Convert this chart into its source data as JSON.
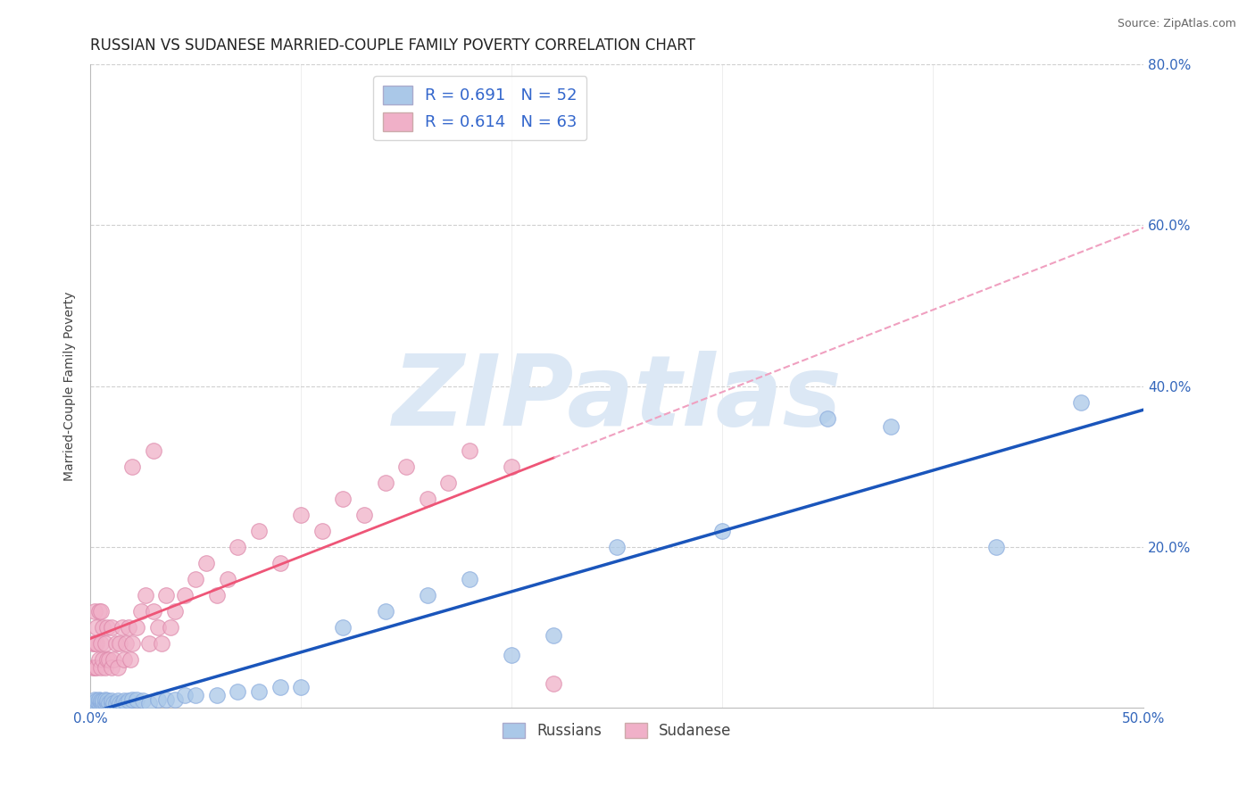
{
  "title": "RUSSIAN VS SUDANESE MARRIED-COUPLE FAMILY POVERTY CORRELATION CHART",
  "source": "Source: ZipAtlas.com",
  "ylabel": "Married-Couple Family Poverty",
  "xlim": [
    0.0,
    0.5
  ],
  "ylim": [
    0.0,
    0.8
  ],
  "russian_R": 0.691,
  "russian_N": 52,
  "sudanese_R": 0.614,
  "sudanese_N": 63,
  "russian_color": "#aac8e8",
  "sudanese_color": "#f0b0c8",
  "russian_line_color": "#1a55bb",
  "sudanese_line_color": "#ee5577",
  "sudanese_dash_color": "#f0a0c0",
  "background_color": "#ffffff",
  "grid_color": "#d0d0d0",
  "watermark": "ZIPatlas",
  "watermark_color": "#dce8f5",
  "russians_x": [
    0.001,
    0.002,
    0.002,
    0.003,
    0.003,
    0.004,
    0.004,
    0.005,
    0.005,
    0.006,
    0.006,
    0.007,
    0.007,
    0.008,
    0.008,
    0.009,
    0.01,
    0.01,
    0.011,
    0.012,
    0.013,
    0.014,
    0.015,
    0.016,
    0.017,
    0.018,
    0.02,
    0.022,
    0.025,
    0.028,
    0.032,
    0.036,
    0.04,
    0.045,
    0.05,
    0.06,
    0.07,
    0.08,
    0.09,
    0.1,
    0.12,
    0.14,
    0.16,
    0.18,
    0.2,
    0.22,
    0.25,
    0.3,
    0.35,
    0.38,
    0.43,
    0.47
  ],
  "russians_y": [
    0.005,
    0.005,
    0.01,
    0.005,
    0.008,
    0.005,
    0.01,
    0.005,
    0.008,
    0.005,
    0.008,
    0.005,
    0.01,
    0.005,
    0.008,
    0.005,
    0.005,
    0.008,
    0.005,
    0.005,
    0.008,
    0.005,
    0.005,
    0.008,
    0.005,
    0.008,
    0.01,
    0.01,
    0.008,
    0.005,
    0.01,
    0.01,
    0.01,
    0.015,
    0.015,
    0.015,
    0.02,
    0.02,
    0.025,
    0.025,
    0.1,
    0.12,
    0.14,
    0.16,
    0.065,
    0.09,
    0.2,
    0.22,
    0.36,
    0.35,
    0.2,
    0.38
  ],
  "sudanese_x": [
    0.001,
    0.001,
    0.002,
    0.002,
    0.002,
    0.003,
    0.003,
    0.003,
    0.004,
    0.004,
    0.005,
    0.005,
    0.005,
    0.006,
    0.006,
    0.007,
    0.007,
    0.008,
    0.008,
    0.009,
    0.01,
    0.01,
    0.011,
    0.012,
    0.013,
    0.014,
    0.015,
    0.016,
    0.017,
    0.018,
    0.019,
    0.02,
    0.022,
    0.024,
    0.026,
    0.028,
    0.03,
    0.032,
    0.034,
    0.036,
    0.038,
    0.04,
    0.045,
    0.05,
    0.055,
    0.06,
    0.065,
    0.07,
    0.08,
    0.09,
    0.1,
    0.11,
    0.12,
    0.13,
    0.14,
    0.15,
    0.16,
    0.17,
    0.18,
    0.2,
    0.02,
    0.03,
    0.22
  ],
  "sudanese_y": [
    0.05,
    0.08,
    0.05,
    0.08,
    0.12,
    0.05,
    0.08,
    0.1,
    0.06,
    0.12,
    0.05,
    0.08,
    0.12,
    0.06,
    0.1,
    0.05,
    0.08,
    0.06,
    0.1,
    0.06,
    0.05,
    0.1,
    0.06,
    0.08,
    0.05,
    0.08,
    0.1,
    0.06,
    0.08,
    0.1,
    0.06,
    0.08,
    0.1,
    0.12,
    0.14,
    0.08,
    0.12,
    0.1,
    0.08,
    0.14,
    0.1,
    0.12,
    0.14,
    0.16,
    0.18,
    0.14,
    0.16,
    0.2,
    0.22,
    0.18,
    0.24,
    0.22,
    0.26,
    0.24,
    0.28,
    0.3,
    0.26,
    0.28,
    0.32,
    0.3,
    0.3,
    0.32,
    0.03
  ]
}
